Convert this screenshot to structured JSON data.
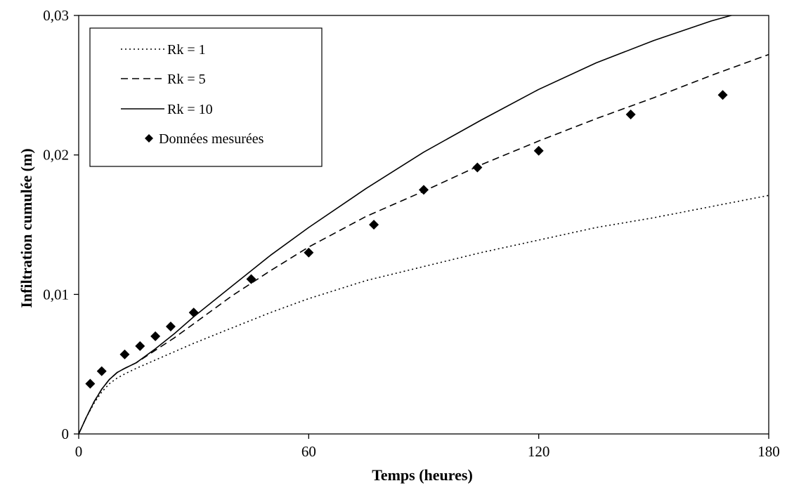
{
  "chart_data": {
    "type": "line",
    "title": "",
    "xlabel": "Temps  (heures)",
    "ylabel": "Infiltration cumulée  (m)",
    "xlim": [
      0,
      180
    ],
    "ylim": [
      0,
      0.03
    ],
    "x_ticks": [
      0,
      60,
      120,
      180
    ],
    "x_tick_labels": [
      "0",
      "60",
      "120",
      "180"
    ],
    "y_ticks": [
      0,
      0.01,
      0.02,
      0.03
    ],
    "y_tick_labels": [
      "0",
      "0,01",
      "0,02",
      "0,03"
    ],
    "grid": false,
    "legend_position": "top-left",
    "series": [
      {
        "name": "Rk = 1",
        "style": "dotted",
        "color": "#000000",
        "x": [
          0,
          2,
          4,
          6,
          8,
          10,
          12,
          15,
          20,
          25,
          30,
          40,
          50,
          60,
          75,
          90,
          105,
          120,
          135,
          150,
          165,
          180
        ],
        "y": [
          0,
          0.0012,
          0.0022,
          0.003,
          0.0036,
          0.004,
          0.0043,
          0.0047,
          0.0053,
          0.0059,
          0.0065,
          0.0076,
          0.0087,
          0.0097,
          0.011,
          0.012,
          0.013,
          0.0139,
          0.0148,
          0.0155,
          0.0163,
          0.0171
        ]
      },
      {
        "name": "Rk = 5",
        "style": "dashed",
        "color": "#000000",
        "x": [
          0,
          2,
          4,
          6,
          8,
          10,
          12,
          15,
          20,
          25,
          30,
          40,
          50,
          60,
          75,
          90,
          105,
          120,
          135,
          150,
          165,
          180
        ],
        "y": [
          0,
          0.0012,
          0.0023,
          0.0032,
          0.0039,
          0.0044,
          0.0047,
          0.0051,
          0.006,
          0.0069,
          0.0079,
          0.0099,
          0.0117,
          0.0134,
          0.0156,
          0.0174,
          0.0193,
          0.021,
          0.0226,
          0.0241,
          0.0257,
          0.0272
        ]
      },
      {
        "name": "Rk = 10",
        "style": "solid",
        "color": "#000000",
        "x": [
          0,
          2,
          4,
          6,
          8,
          10,
          12,
          15,
          20,
          25,
          30,
          40,
          50,
          60,
          75,
          90,
          105,
          120,
          135,
          150,
          165,
          178
        ],
        "y": [
          0,
          0.0012,
          0.0023,
          0.0032,
          0.0039,
          0.0044,
          0.0047,
          0.0051,
          0.0061,
          0.0072,
          0.0084,
          0.0106,
          0.0128,
          0.0148,
          0.0176,
          0.0202,
          0.0225,
          0.0247,
          0.0266,
          0.0282,
          0.0296,
          0.0306
        ]
      },
      {
        "name": "Données mesurées",
        "style": "markers",
        "marker": "diamond",
        "color": "#000000",
        "x": [
          3,
          6,
          12,
          16,
          20,
          24,
          30,
          45,
          60,
          77,
          90,
          104,
          120,
          144,
          168
        ],
        "y": [
          0.0036,
          0.0045,
          0.0057,
          0.0063,
          0.007,
          0.0077,
          0.0087,
          0.0111,
          0.013,
          0.015,
          0.0175,
          0.0191,
          0.0203,
          0.0229,
          0.0243
        ]
      }
    ]
  }
}
